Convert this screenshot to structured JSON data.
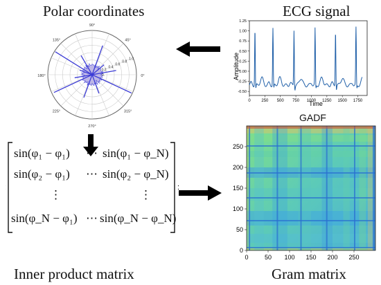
{
  "titles": {
    "polar": "Polar coordinates",
    "ecg": "ECG signal",
    "gadf": "GADF",
    "inner": "Inner product matrix",
    "gram": "Gram matrix"
  },
  "polar": {
    "angle_labels": [
      "0°",
      "45°",
      "90°",
      "135°",
      "180°",
      "225°",
      "270°",
      "315°"
    ],
    "radial_labels": [
      "0.2",
      "0.4",
      "0.6",
      "0.8",
      "1.0"
    ],
    "radial_prefix": "0.",
    "line_color": "#3b3bd6",
    "fill_color": "#b9b1e6"
  },
  "chart_data": [
    {
      "type": "line",
      "xlabel": "Time",
      "ylabel": "Amplitude",
      "xlim": [
        0,
        1900
      ],
      "ylim": [
        -0.6,
        1.25
      ],
      "xticks": [
        0,
        250,
        500,
        750,
        1000,
        1250,
        1500,
        1750
      ],
      "xtick_labels": [
        "0",
        "250",
        "500",
        "750",
        "1000",
        "1250",
        "1500",
        "1750"
      ],
      "yticks": [
        -0.5,
        -0.25,
        0.0,
        0.25,
        0.5,
        0.75,
        1.0,
        1.25
      ],
      "ytick_labels": [
        "-0.50",
        "-0.25",
        "0.00",
        "0.25",
        "0.50",
        "0.75",
        "1.00",
        "1.25"
      ],
      "r_peaks_x": [
        90,
        380,
        720,
        1060,
        1390,
        1720
      ],
      "r_peaks_y": [
        1.08,
        1.08,
        1.05,
        1.06,
        1.06,
        1.08
      ],
      "baseline": -0.35,
      "color": "#1f5fa8"
    },
    {
      "type": "heatmap",
      "title": "GADF",
      "xlim": [
        0,
        300
      ],
      "ylim": [
        0,
        300
      ],
      "xticks": [
        0,
        50,
        100,
        150,
        200,
        250
      ],
      "yticks": [
        0,
        50,
        100,
        150,
        200,
        250
      ],
      "xtick_labels": [
        "0",
        "50",
        "100",
        "150",
        "200",
        "250"
      ],
      "ytick_labels": [
        "0",
        "50",
        "100",
        "150",
        "200",
        "250"
      ],
      "stripe_positions": [
        5,
        70,
        125,
        185,
        250
      ],
      "colormap": "jet"
    }
  ],
  "matrix": {
    "rows": [
      [
        "sin(φ₁ − φ₁)",
        "⋯",
        "sin(φ₁ − φ_N)"
      ],
      [
        "sin(φ₂ − φ₁)",
        "⋯",
        "sin(φ₂ − φ_N)"
      ],
      [
        "⋮",
        "",
        "⋮"
      ],
      [
        "sin(φ_N − φ₁)",
        "⋯",
        "sin(φ_N − φ_N)"
      ]
    ]
  }
}
